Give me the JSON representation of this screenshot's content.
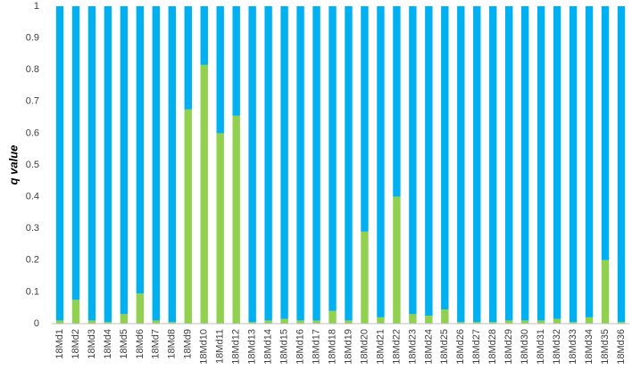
{
  "chart_data": {
    "type": "stacked_bar",
    "y_label": "q value",
    "categories": [
      "18Md1",
      "18Md2",
      "18Md3",
      "18Md4",
      "18Md5",
      "18Md6",
      "18Md7",
      "18Md8",
      "18Md9",
      "18Md10",
      "18Md11",
      "18Md12",
      "18Md13",
      "18Md14",
      "18Md15",
      "18Md16",
      "18Md17",
      "18Md18",
      "18Md19",
      "18Md20",
      "18Md21",
      "18Md22",
      "18Md23",
      "18Md24",
      "18Md25",
      "18Md26",
      "18Md27",
      "18Md28",
      "18Md29",
      "18Md30",
      "18Md31",
      "18Md32",
      "18Md33",
      "18Md34",
      "18Md35",
      "18Md36"
    ],
    "series": [
      {
        "color": "#92d050",
        "values": [
          0.01,
          0.075,
          0.01,
          0.005,
          0.03,
          0.095,
          0.01,
          0.005,
          0.675,
          0.815,
          0.6,
          0.655,
          0.005,
          0.01,
          0.015,
          0.01,
          0.01,
          0.04,
          0.01,
          0.29,
          0.02,
          0.4,
          0.03,
          0.025,
          0.045,
          0.005,
          0.005,
          0.005,
          0.01,
          0.01,
          0.01,
          0.015,
          0.005,
          0.02,
          0.2,
          0.005
        ]
      },
      {
        "color": "#00b0f0",
        "values": [
          0.99,
          0.925,
          0.99,
          0.995,
          0.97,
          0.905,
          0.99,
          0.995,
          0.325,
          0.185,
          0.4,
          0.345,
          0.995,
          0.99,
          0.985,
          0.99,
          0.99,
          0.96,
          0.99,
          0.71,
          0.98,
          0.6,
          0.97,
          0.975,
          0.955,
          0.995,
          0.995,
          0.995,
          0.99,
          0.99,
          0.99,
          0.985,
          0.995,
          0.98,
          0.8,
          0.995
        ]
      }
    ],
    "ylim": [
      0,
      1
    ],
    "yticks": [
      0,
      0.1,
      0.2,
      0.3,
      0.4,
      0.5,
      0.6,
      0.7,
      0.8,
      0.9,
      1
    ],
    "grid": false
  }
}
